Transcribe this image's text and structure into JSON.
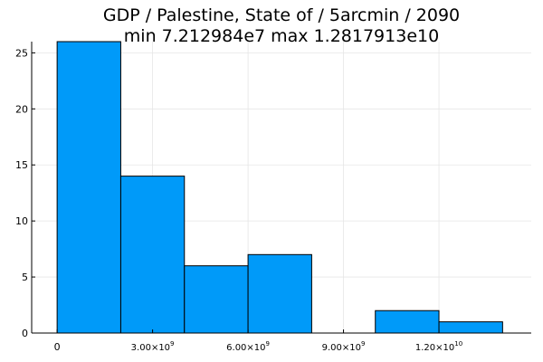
{
  "chart_data": {
    "type": "bar",
    "title": "GDP / Palestine, State of / 5arcmin / 2090",
    "subtitle": "min 7.212984e7  max 1.2817913e10",
    "xlabel": "",
    "ylabel": "",
    "bin_edges": [
      0,
      2000000000,
      4000000000,
      6000000000,
      8000000000,
      10000000000,
      12000000000,
      14000000000
    ],
    "values": [
      26,
      14,
      6,
      7,
      0,
      2,
      1
    ],
    "xlim": [
      -800000000,
      14900000000
    ],
    "ylim": [
      0,
      26
    ],
    "x_ticks": [
      {
        "value": 0,
        "mantissa": "0",
        "exponent": ""
      },
      {
        "value": 3000000000,
        "mantissa": "3.00×10",
        "exponent": "9"
      },
      {
        "value": 6000000000,
        "mantissa": "6.00×10",
        "exponent": "9"
      },
      {
        "value": 9000000000,
        "mantissa": "9.00×10",
        "exponent": "9"
      },
      {
        "value": 12000000000,
        "mantissa": "1.20×10",
        "exponent": "10"
      }
    ],
    "y_ticks": [
      {
        "value": 0,
        "label": "0"
      },
      {
        "value": 5,
        "label": "5"
      },
      {
        "value": 10,
        "label": "10"
      },
      {
        "value": 15,
        "label": "15"
      },
      {
        "value": 20,
        "label": "20"
      },
      {
        "value": 25,
        "label": "25"
      }
    ],
    "grid": true,
    "legend": false,
    "bar_color": "#009af9"
  }
}
